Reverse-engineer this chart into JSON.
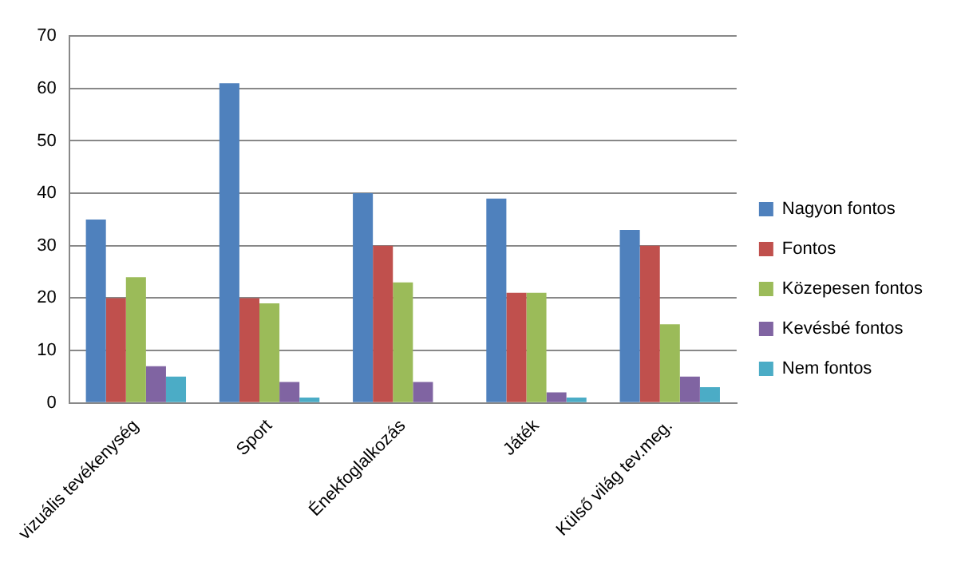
{
  "chart_data": {
    "type": "bar",
    "categories": [
      "vizuális tevékenység",
      "Sport",
      "Énekfoglalkozás",
      "Játék",
      "Külső világ tev.meg."
    ],
    "series": [
      {
        "name": "Nagyon fontos",
        "color": "#4f81bd",
        "values": [
          35,
          61,
          40,
          39,
          33
        ]
      },
      {
        "name": "Fontos",
        "color": "#c0504d",
        "values": [
          20,
          20,
          30,
          21,
          30
        ]
      },
      {
        "name": "Közepesen fontos",
        "color": "#9bbb59",
        "values": [
          24,
          19,
          23,
          21,
          15
        ]
      },
      {
        "name": "Kevésbé fontos",
        "color": "#8064a2",
        "values": [
          7,
          4,
          4,
          2,
          5
        ]
      },
      {
        "name": "Nem fontos",
        "color": "#4bacc6",
        "values": [
          5,
          1,
          0,
          1,
          3
        ]
      }
    ],
    "ylim": [
      0,
      70
    ],
    "yticks": [
      0,
      10,
      20,
      30,
      40,
      50,
      60,
      70
    ],
    "grid": "y",
    "legend": "right"
  }
}
